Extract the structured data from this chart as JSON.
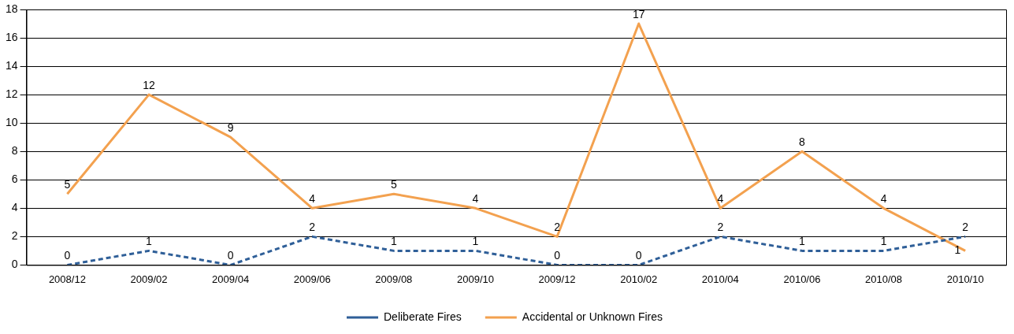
{
  "chart_data": {
    "type": "line",
    "categories": [
      "2008/12",
      "2009/02",
      "2009/04",
      "2009/06",
      "2009/08",
      "2009/10",
      "2009/12",
      "2010/02",
      "2010/04",
      "2010/06",
      "2010/08",
      "2010/10"
    ],
    "series": [
      {
        "name": "Deliberate Fires",
        "color": "#2f5f98",
        "line_style": "dashed",
        "values": [
          0,
          1,
          0,
          2,
          1,
          1,
          0,
          0,
          2,
          1,
          1,
          2
        ]
      },
      {
        "name": "Accidental or Unknown Fires",
        "color": "#f3a14f",
        "line_style": "solid",
        "values": [
          5,
          12,
          9,
          4,
          5,
          4,
          2,
          17,
          4,
          8,
          4,
          1
        ]
      }
    ],
    "ylim": [
      0,
      18
    ],
    "yticks": [
      0,
      2,
      4,
      6,
      8,
      10,
      12,
      14,
      16,
      18
    ],
    "grid": "y",
    "legend": "bottom",
    "marker": "none",
    "data_labels": true
  }
}
